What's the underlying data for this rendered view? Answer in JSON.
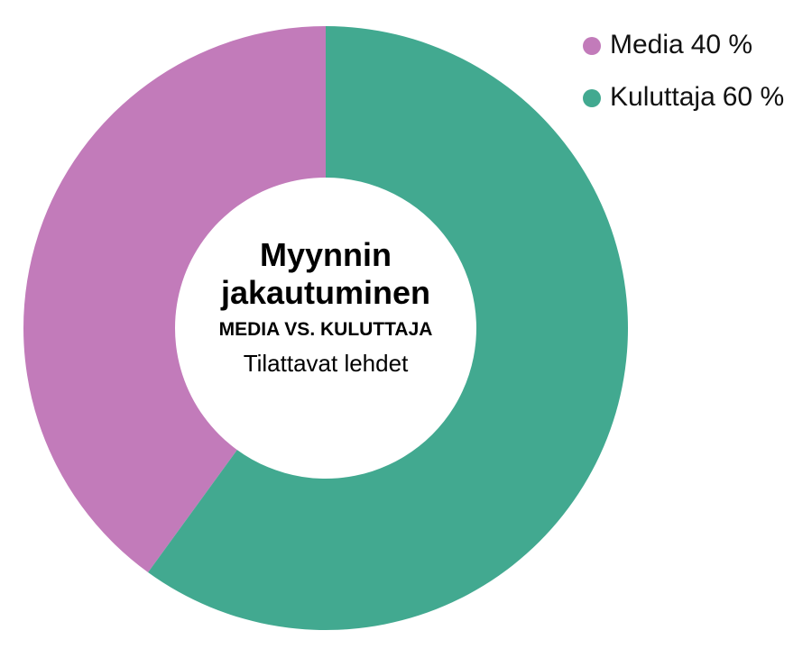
{
  "chart_data": {
    "type": "donut",
    "title": "Myynnin jakautuminen",
    "subtitle": "MEDIA VS. KULUTTAJA",
    "annotation": "Tilattavat lehdet",
    "categories": [
      "Media",
      "Kuluttaja"
    ],
    "values": [
      40,
      60
    ],
    "value_labels": [
      "40 %",
      "60 %"
    ],
    "colors": [
      "#c27bba",
      "#42a990"
    ]
  }
}
